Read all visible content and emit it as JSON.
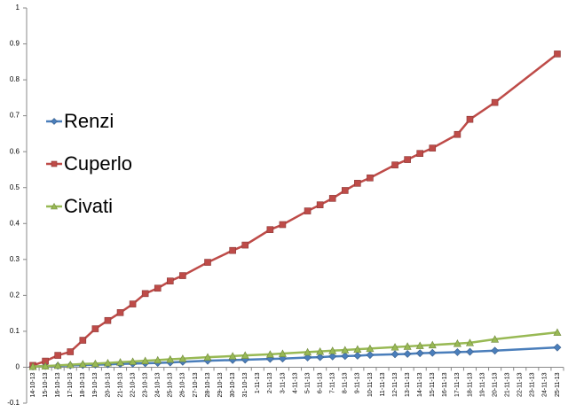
{
  "chart_data": {
    "type": "line",
    "categories": [
      "14-10-13",
      "15-10-13",
      "16-10-13",
      "17-10-13",
      "18-10-13",
      "19-10-13",
      "20-10-13",
      "21-10-13",
      "22-10-13",
      "23-10-13",
      "24-10-13",
      "25-10-13",
      "26-10-13",
      "27-10-13",
      "28-10-13",
      "29-10-13",
      "30-10-13",
      "31-10-13",
      "1-11-13",
      "2-11-13",
      "3-11-13",
      "4-11-13",
      "5-11-13",
      "6-11-13",
      "7-11-13",
      "8-11-13",
      "9-11-13",
      "10-11-13",
      "11-11-13",
      "12-11-13",
      "13-11-13",
      "14-11-13",
      "15-11-13",
      "16-11-13",
      "17-11-13",
      "18-11-13",
      "19-11-13",
      "20-11-13",
      "21-11-13",
      "22-11-13",
      "23-11-13",
      "24-11-13",
      "25-11-13"
    ],
    "series": [
      {
        "name": "Renzi",
        "color": "#4a7ebb",
        "marker": "diamond",
        "x": [
          "14-10-13",
          "15-10-13",
          "16-10-13",
          "17-10-13",
          "18-10-13",
          "19-10-13",
          "20-10-13",
          "21-10-13",
          "22-10-13",
          "23-10-13",
          "24-10-13",
          "25-10-13",
          "26-10-13",
          "28-10-13",
          "30-10-13",
          "31-10-13",
          "2-11-13",
          "3-11-13",
          "5-11-13",
          "6-11-13",
          "7-11-13",
          "8-11-13",
          "9-11-13",
          "10-11-13",
          "12-11-13",
          "13-11-13",
          "14-11-13",
          "15-11-13",
          "17-11-13",
          "18-11-13",
          "20-11-13",
          "25-11-13"
        ],
        "values": [
          0.002,
          0.003,
          0.004,
          0.005,
          0.006,
          0.007,
          0.008,
          0.009,
          0.01,
          0.011,
          0.012,
          0.013,
          0.015,
          0.018,
          0.02,
          0.021,
          0.023,
          0.024,
          0.027,
          0.028,
          0.03,
          0.031,
          0.032,
          0.034,
          0.036,
          0.037,
          0.039,
          0.04,
          0.042,
          0.043,
          0.046,
          0.055
        ]
      },
      {
        "name": "Cuperlo",
        "color": "#be4b48",
        "marker": "square",
        "x": [
          "14-10-13",
          "15-10-13",
          "16-10-13",
          "17-10-13",
          "18-10-13",
          "19-10-13",
          "20-10-13",
          "21-10-13",
          "22-10-13",
          "23-10-13",
          "24-10-13",
          "25-10-13",
          "26-10-13",
          "28-10-13",
          "30-10-13",
          "31-10-13",
          "2-11-13",
          "3-11-13",
          "5-11-13",
          "6-11-13",
          "7-11-13",
          "8-11-13",
          "9-11-13",
          "10-11-13",
          "12-11-13",
          "13-11-13",
          "14-11-13",
          "15-11-13",
          "17-11-13",
          "18-11-13",
          "20-11-13",
          "25-11-13"
        ],
        "values": [
          0.005,
          0.017,
          0.033,
          0.043,
          0.075,
          0.107,
          0.13,
          0.152,
          0.176,
          0.205,
          0.22,
          0.24,
          0.255,
          0.292,
          0.325,
          0.34,
          0.383,
          0.397,
          0.435,
          0.452,
          0.47,
          0.492,
          0.512,
          0.527,
          0.563,
          0.578,
          0.595,
          0.61,
          0.648,
          0.69,
          0.737,
          0.872
        ]
      },
      {
        "name": "Civati",
        "color": "#98b954",
        "marker": "triangle",
        "x": [
          "14-10-13",
          "15-10-13",
          "16-10-13",
          "17-10-13",
          "18-10-13",
          "19-10-13",
          "20-10-13",
          "21-10-13",
          "22-10-13",
          "23-10-13",
          "24-10-13",
          "25-10-13",
          "26-10-13",
          "28-10-13",
          "30-10-13",
          "31-10-13",
          "2-11-13",
          "3-11-13",
          "5-11-13",
          "6-11-13",
          "7-11-13",
          "8-11-13",
          "9-11-13",
          "10-11-13",
          "12-11-13",
          "13-11-13",
          "14-11-13",
          "15-11-13",
          "17-11-13",
          "18-11-13",
          "20-11-13",
          "25-11-13"
        ],
        "values": [
          0.002,
          0.003,
          0.005,
          0.007,
          0.009,
          0.01,
          0.012,
          0.014,
          0.016,
          0.018,
          0.02,
          0.022,
          0.024,
          0.028,
          0.031,
          0.033,
          0.036,
          0.038,
          0.042,
          0.044,
          0.046,
          0.048,
          0.05,
          0.052,
          0.056,
          0.058,
          0.06,
          0.062,
          0.066,
          0.068,
          0.078,
          0.097
        ]
      }
    ],
    "ylim": [
      -0.1,
      1
    ],
    "yticks": [
      -0.1,
      0,
      0.1,
      0.2,
      0.3,
      0.4,
      0.5,
      0.6,
      0.7,
      0.8,
      0.9,
      1
    ],
    "grid": false,
    "legend": "left"
  }
}
